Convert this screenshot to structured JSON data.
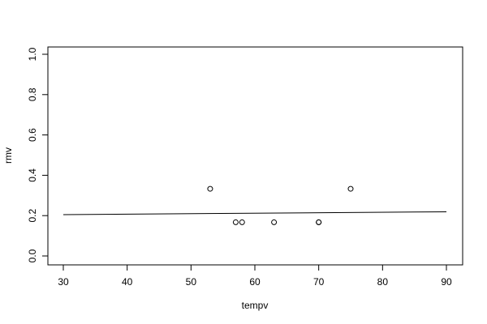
{
  "chart_data": {
    "type": "scatter",
    "title": "",
    "xlabel": "tempv",
    "ylabel": "rmv",
    "xlim": [
      27.6,
      92.4
    ],
    "ylim": [
      -0.04,
      1.04
    ],
    "x_ticks": [
      30,
      40,
      50,
      60,
      70,
      80,
      90
    ],
    "y_ticks": [
      0.0,
      0.2,
      0.4,
      0.6,
      0.8,
      1.0
    ],
    "x_tick_labels": [
      "30",
      "40",
      "50",
      "60",
      "70",
      "80",
      "90"
    ],
    "y_tick_labels": [
      "0.0",
      "0.2",
      "0.4",
      "0.6",
      "0.8",
      "1.0"
    ],
    "grid": false,
    "points": [
      {
        "x": 53,
        "y": 0.333
      },
      {
        "x": 57,
        "y": 0.167
      },
      {
        "x": 58,
        "y": 0.167
      },
      {
        "x": 63,
        "y": 0.167
      },
      {
        "x": 70,
        "y": 0.167
      },
      {
        "x": 70,
        "y": 0.167
      },
      {
        "x": 75,
        "y": 0.333
      }
    ],
    "line": [
      {
        "x": 30,
        "y": 0.205
      },
      {
        "x": 90,
        "y": 0.219
      }
    ],
    "colors": {
      "points": "#000000",
      "line": "#000000"
    }
  }
}
